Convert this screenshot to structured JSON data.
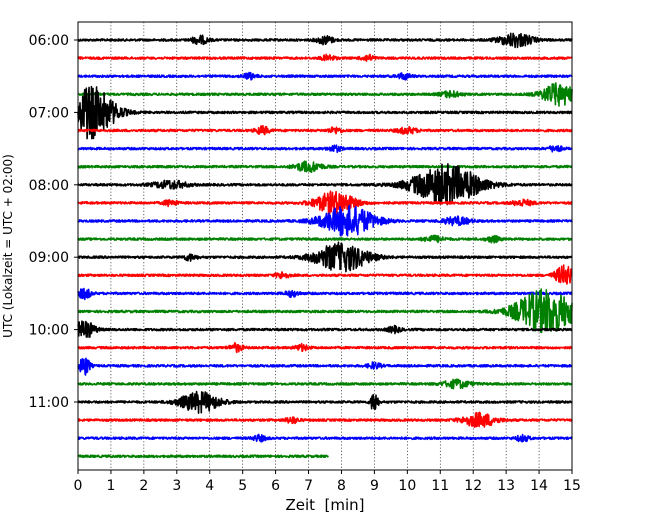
{
  "chart_data": {
    "type": "line",
    "title": "",
    "xlabel": "Zeit  [min]",
    "ylabel": "UTC (Lokalzeit = UTC + 02:00)",
    "xlim": [
      0,
      15
    ],
    "x_ticks": [
      0,
      1,
      2,
      3,
      4,
      5,
      6,
      7,
      8,
      9,
      10,
      11,
      12,
      13,
      14,
      15
    ],
    "y_tick_labels": [
      "06:00",
      "07:00",
      "08:00",
      "09:00",
      "10:00",
      "11:00"
    ],
    "grid": "vertical dotted lines at each minute",
    "line_colors": [
      "#000000",
      "#ff0000",
      "#0000ff",
      "#008000"
    ],
    "row_minutes": 15,
    "traces": [
      {
        "start": "06:00",
        "end_minute": 15,
        "color": "#000000",
        "bursts": [
          {
            "t": 3.7,
            "amp": 4,
            "w": 0.25
          },
          {
            "t": 7.5,
            "amp": 4,
            "w": 0.25
          },
          {
            "t": 13.3,
            "amp": 7,
            "w": 0.5
          }
        ]
      },
      {
        "start": "06:15",
        "end_minute": 15,
        "color": "#ff0000",
        "bursts": [
          {
            "t": 7.6,
            "amp": 3,
            "w": 0.2
          },
          {
            "t": 8.8,
            "amp": 3,
            "w": 0.2
          }
        ]
      },
      {
        "start": "06:30",
        "end_minute": 15,
        "color": "#0000ff",
        "bursts": [
          {
            "t": 5.2,
            "amp": 3,
            "w": 0.2
          },
          {
            "t": 9.9,
            "amp": 3,
            "w": 0.2
          }
        ]
      },
      {
        "start": "06:45",
        "end_minute": 15,
        "color": "#008000",
        "bursts": [
          {
            "t": 11.3,
            "amp": 3,
            "w": 0.3
          },
          {
            "t": 14.6,
            "amp": 11,
            "w": 0.5
          }
        ]
      },
      {
        "start": "07:00",
        "end_minute": 15,
        "color": "#000000",
        "bursts": [
          {
            "t": 0.4,
            "amp": 26,
            "w": 0.7
          }
        ]
      },
      {
        "start": "07:15",
        "end_minute": 15,
        "color": "#ff0000",
        "bursts": [
          {
            "t": 5.6,
            "amp": 4,
            "w": 0.2
          },
          {
            "t": 7.8,
            "amp": 3,
            "w": 0.2
          },
          {
            "t": 10.0,
            "amp": 3,
            "w": 0.3
          }
        ]
      },
      {
        "start": "07:30",
        "end_minute": 15,
        "color": "#0000ff",
        "bursts": [
          {
            "t": 7.8,
            "amp": 3,
            "w": 0.2
          },
          {
            "t": 14.5,
            "amp": 3,
            "w": 0.2
          }
        ]
      },
      {
        "start": "07:45",
        "end_minute": 15,
        "color": "#008000",
        "bursts": [
          {
            "t": 7.0,
            "amp": 5,
            "w": 0.4
          }
        ]
      },
      {
        "start": "08:00",
        "end_minute": 15,
        "color": "#000000",
        "bursts": [
          {
            "t": 2.8,
            "amp": 4,
            "w": 0.5
          },
          {
            "t": 11.2,
            "amp": 20,
            "w": 1.0
          }
        ]
      },
      {
        "start": "08:15",
        "end_minute": 15,
        "color": "#ff0000",
        "bursts": [
          {
            "t": 2.8,
            "amp": 3,
            "w": 0.2
          },
          {
            "t": 7.8,
            "amp": 11,
            "w": 0.6
          },
          {
            "t": 13.5,
            "amp": 3,
            "w": 0.3
          }
        ]
      },
      {
        "start": "08:30",
        "end_minute": 15,
        "color": "#0000ff",
        "bursts": [
          {
            "t": 8.2,
            "amp": 15,
            "w": 0.8
          },
          {
            "t": 11.5,
            "amp": 4,
            "w": 0.4
          }
        ]
      },
      {
        "start": "08:45",
        "end_minute": 15,
        "color": "#008000",
        "bursts": [
          {
            "t": 10.8,
            "amp": 3,
            "w": 0.3
          },
          {
            "t": 12.6,
            "amp": 3,
            "w": 0.2
          }
        ]
      },
      {
        "start": "09:00",
        "end_minute": 15,
        "color": "#000000",
        "bursts": [
          {
            "t": 8.0,
            "amp": 14,
            "w": 0.8
          },
          {
            "t": 3.4,
            "amp": 3,
            "w": 0.2
          }
        ]
      },
      {
        "start": "09:15",
        "end_minute": 15,
        "color": "#ff0000",
        "bursts": [
          {
            "t": 14.8,
            "amp": 10,
            "w": 0.3
          },
          {
            "t": 6.2,
            "amp": 3,
            "w": 0.2
          }
        ]
      },
      {
        "start": "09:30",
        "end_minute": 15,
        "color": "#0000ff",
        "bursts": [
          {
            "t": 0.2,
            "amp": 5,
            "w": 0.2
          },
          {
            "t": 6.5,
            "amp": 3,
            "w": 0.2
          }
        ]
      },
      {
        "start": "09:45",
        "end_minute": 15,
        "color": "#008000",
        "bursts": [
          {
            "t": 14.2,
            "amp": 22,
            "w": 0.9
          }
        ]
      },
      {
        "start": "10:00",
        "end_minute": 15,
        "color": "#000000",
        "bursts": [
          {
            "t": 0.2,
            "amp": 9,
            "w": 0.3
          },
          {
            "t": 9.6,
            "amp": 3,
            "w": 0.2
          }
        ]
      },
      {
        "start": "10:15",
        "end_minute": 15,
        "color": "#ff0000",
        "bursts": [
          {
            "t": 4.8,
            "amp": 4,
            "w": 0.2
          },
          {
            "t": 6.8,
            "amp": 3,
            "w": 0.2
          }
        ]
      },
      {
        "start": "10:30",
        "end_minute": 15,
        "color": "#0000ff",
        "bursts": [
          {
            "t": 0.2,
            "amp": 10,
            "w": 0.15
          },
          {
            "t": 9.0,
            "amp": 3,
            "w": 0.2
          }
        ]
      },
      {
        "start": "10:45",
        "end_minute": 15,
        "color": "#008000",
        "bursts": [
          {
            "t": 11.5,
            "amp": 4,
            "w": 0.4
          }
        ]
      },
      {
        "start": "11:00",
        "end_minute": 15,
        "color": "#000000",
        "bursts": [
          {
            "t": 3.7,
            "amp": 10,
            "w": 0.6
          },
          {
            "t": 9.0,
            "amp": 12,
            "w": 0.1
          }
        ]
      },
      {
        "start": "11:15",
        "end_minute": 15,
        "color": "#ff0000",
        "bursts": [
          {
            "t": 12.2,
            "amp": 7,
            "w": 0.5
          },
          {
            "t": 6.5,
            "amp": 3,
            "w": 0.2
          }
        ]
      },
      {
        "start": "11:30",
        "end_minute": 15,
        "color": "#0000ff",
        "bursts": [
          {
            "t": 5.5,
            "amp": 3,
            "w": 0.2
          },
          {
            "t": 13.5,
            "amp": 3,
            "w": 0.2
          }
        ]
      },
      {
        "start": "11:45",
        "end_minute": 7.6,
        "color": "#008000",
        "bursts": []
      }
    ]
  }
}
